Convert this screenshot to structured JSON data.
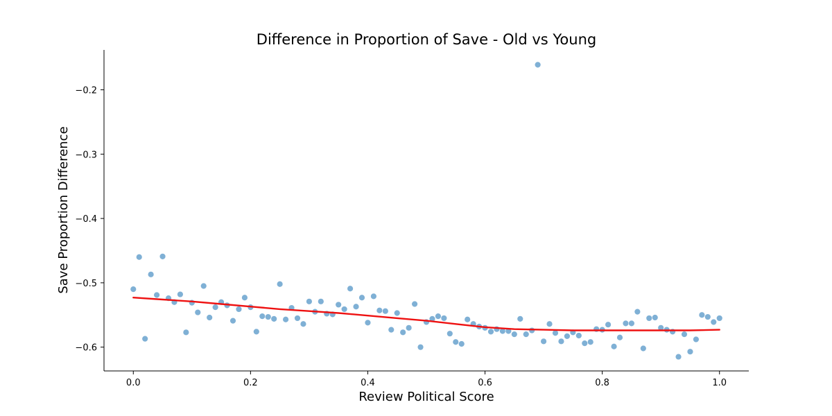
{
  "chart_data": {
    "type": "scatter",
    "title": "Difference in Proportion of Save - Old vs Young",
    "xlabel": "Review Political Score",
    "ylabel": "Save Proportion Difference",
    "xlim": [
      -0.05,
      1.05
    ],
    "ylim": [
      -0.637,
      -0.138
    ],
    "x_ticks": [
      0.0,
      0.2,
      0.4,
      0.6,
      0.8,
      1.0
    ],
    "x_tick_labels": [
      "0.0",
      "0.2",
      "0.4",
      "0.6",
      "0.8",
      "1.0"
    ],
    "y_ticks": [
      -0.6,
      -0.5,
      -0.4,
      -0.3,
      -0.2
    ],
    "y_tick_labels": [
      "−0.6",
      "−0.5",
      "−0.4",
      "−0.3",
      "−0.2"
    ],
    "grid": false,
    "point_color": "#7fb0d5",
    "trend_color": "#ee1111",
    "series": [
      {
        "type": "scatter",
        "x": [
          0.0,
          0.01,
          0.02,
          0.03,
          0.04,
          0.05,
          0.06,
          0.07,
          0.08,
          0.09,
          0.1,
          0.11,
          0.12,
          0.13,
          0.14,
          0.15,
          0.16,
          0.17,
          0.18,
          0.19,
          0.2,
          0.21,
          0.22,
          0.23,
          0.24,
          0.25,
          0.26,
          0.27,
          0.28,
          0.29,
          0.3,
          0.31,
          0.32,
          0.33,
          0.34,
          0.35,
          0.36,
          0.37,
          0.38,
          0.39,
          0.4,
          0.41,
          0.42,
          0.43,
          0.44,
          0.45,
          0.46,
          0.47,
          0.48,
          0.49,
          0.5,
          0.51,
          0.52,
          0.53,
          0.54,
          0.55,
          0.56,
          0.57,
          0.58,
          0.59,
          0.6,
          0.61,
          0.62,
          0.63,
          0.64,
          0.65,
          0.66,
          0.67,
          0.68,
          0.69,
          0.7,
          0.71,
          0.72,
          0.73,
          0.74,
          0.75,
          0.76,
          0.77,
          0.78,
          0.79,
          0.8,
          0.81,
          0.82,
          0.83,
          0.84,
          0.85,
          0.86,
          0.87,
          0.88,
          0.89,
          0.9,
          0.91,
          0.92,
          0.93,
          0.94,
          0.95,
          0.96,
          0.97,
          0.98,
          0.99,
          1.0
        ],
        "y": [
          -0.51,
          -0.46,
          -0.587,
          -0.487,
          -0.519,
          -0.459,
          -0.524,
          -0.53,
          -0.518,
          -0.577,
          -0.531,
          -0.546,
          -0.505,
          -0.554,
          -0.538,
          -0.53,
          -0.535,
          -0.559,
          -0.541,
          -0.523,
          -0.538,
          -0.576,
          -0.552,
          -0.553,
          -0.556,
          -0.502,
          -0.557,
          -0.539,
          -0.555,
          -0.564,
          -0.529,
          -0.545,
          -0.529,
          -0.548,
          -0.549,
          -0.534,
          -0.541,
          -0.509,
          -0.537,
          -0.523,
          -0.562,
          -0.521,
          -0.543,
          -0.544,
          -0.573,
          -0.547,
          -0.577,
          -0.57,
          -0.533,
          -0.6,
          -0.561,
          -0.556,
          -0.552,
          -0.555,
          -0.579,
          -0.592,
          -0.595,
          -0.557,
          -0.564,
          -0.568,
          -0.57,
          -0.576,
          -0.572,
          -0.575,
          -0.575,
          -0.58,
          -0.556,
          -0.58,
          -0.574,
          -0.161,
          -0.591,
          -0.564,
          -0.578,
          -0.591,
          -0.583,
          -0.577,
          -0.582,
          -0.594,
          -0.592,
          -0.572,
          -0.573,
          -0.565,
          -0.599,
          -0.585,
          -0.563,
          -0.563,
          -0.545,
          -0.602,
          -0.555,
          -0.554,
          -0.57,
          -0.573,
          -0.576,
          -0.615,
          -0.58,
          -0.607,
          -0.588,
          -0.55,
          -0.553,
          -0.561,
          -0.555
        ]
      },
      {
        "type": "line",
        "x": [
          0.0,
          0.05,
          0.1,
          0.15,
          0.2,
          0.25,
          0.3,
          0.35,
          0.4,
          0.45,
          0.5,
          0.55,
          0.6,
          0.65,
          0.7,
          0.75,
          0.8,
          0.85,
          0.9,
          0.95,
          1.0
        ],
        "y": [
          -0.523,
          -0.526,
          -0.529,
          -0.533,
          -0.537,
          -0.541,
          -0.544,
          -0.547,
          -0.551,
          -0.555,
          -0.559,
          -0.564,
          -0.569,
          -0.572,
          -0.573,
          -0.574,
          -0.574,
          -0.574,
          -0.574,
          -0.574,
          -0.573
        ]
      }
    ]
  }
}
